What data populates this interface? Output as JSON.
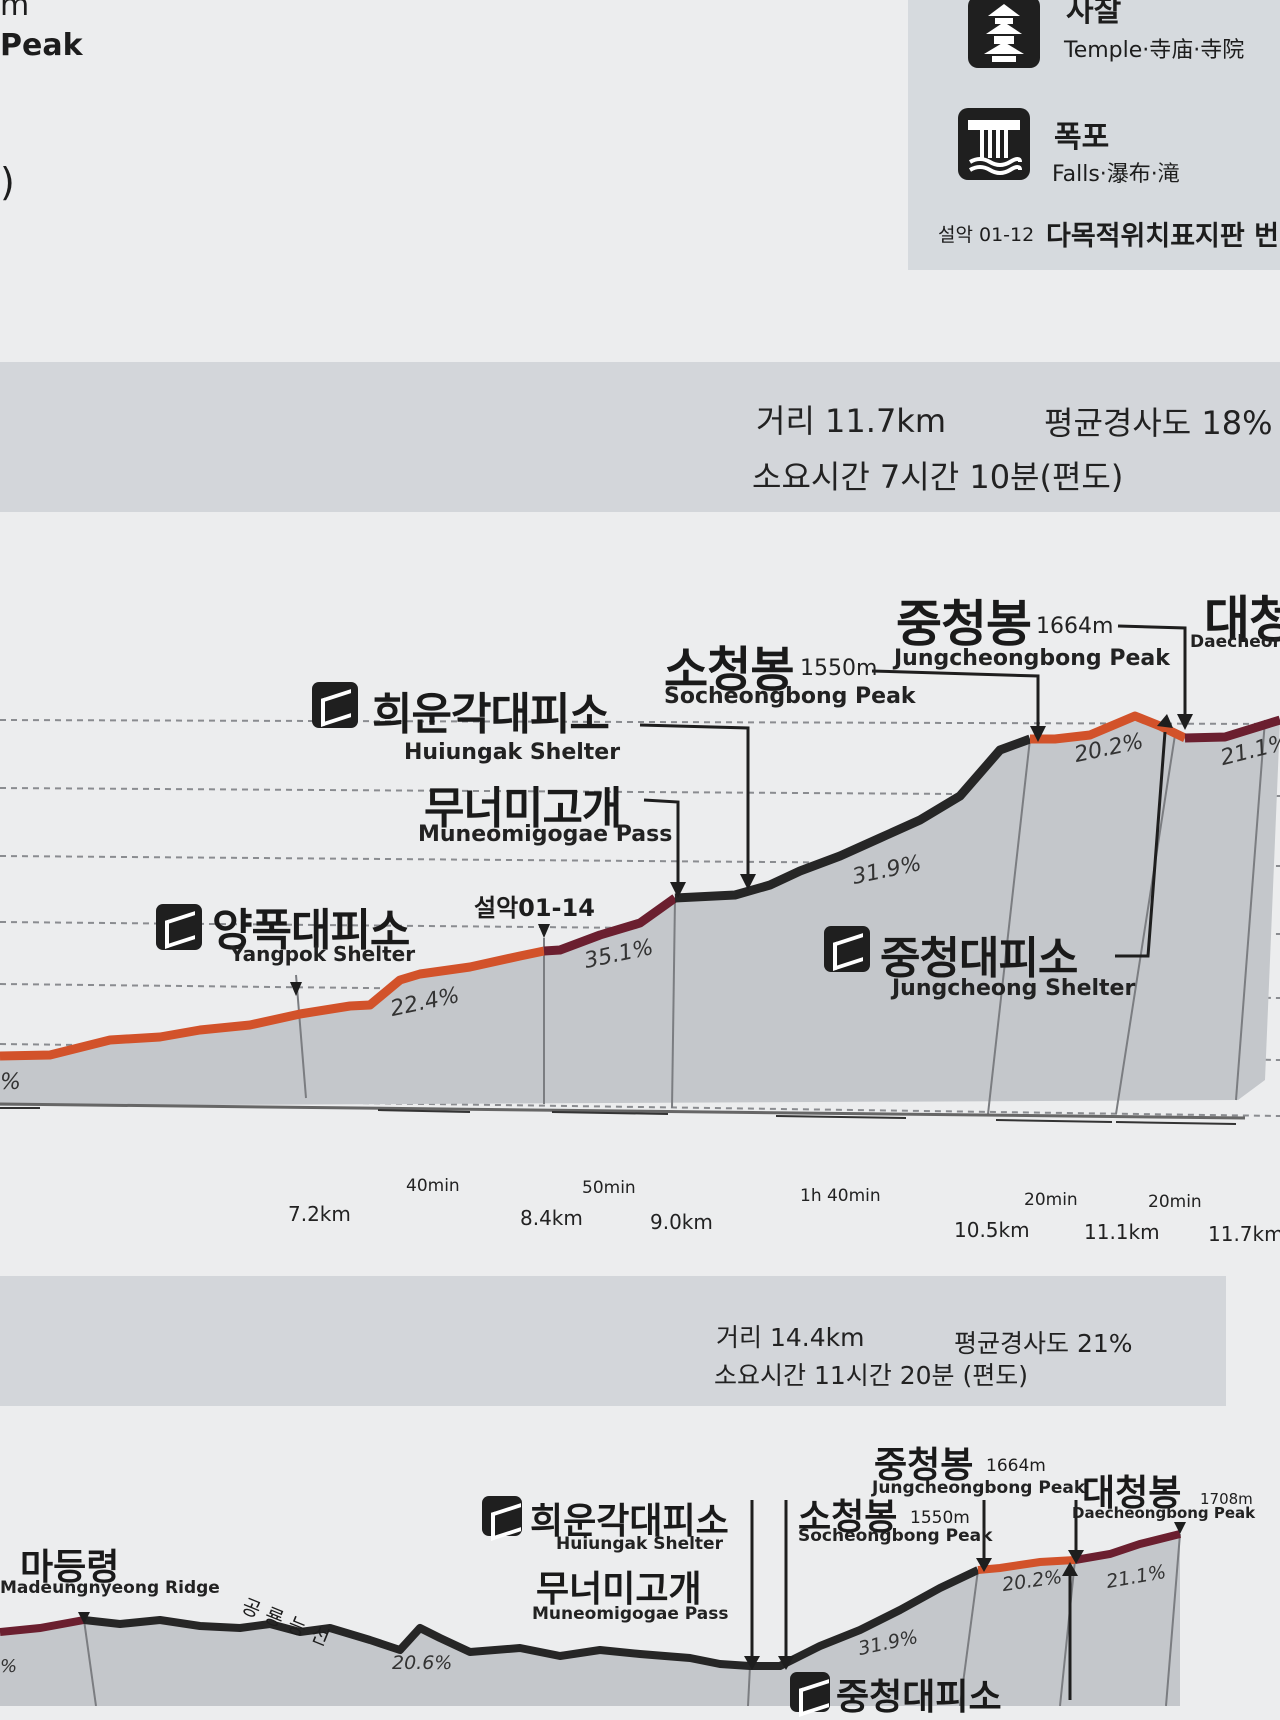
{
  "legend": {
    "temple": {
      "ko": "사찰",
      "en": "Temple·寺庙·寺院",
      "icon": "temple-icon"
    },
    "falls": {
      "ko": "폭포",
      "en": "Falls·瀑布·滝",
      "icon": "waterfall-icon"
    },
    "sign_code": "설악 01-12",
    "sign_title": "다목적위치표지판 번"
  },
  "top_left": {
    "line1": "m",
    "line2": "Peak",
    "line3": ")"
  },
  "route1": {
    "distance": "거리 11.7km",
    "grade": "평균경사도  18%",
    "time": "소요시간 7시간 10분(편도)",
    "points": {
      "daecheong_ko": "대청",
      "daecheong_en": "Daecheon",
      "jungcheongbong_ko": "중청봉",
      "jungcheongbong_elev": "1664m",
      "jungcheongbong_en": "Jungcheongbong Peak",
      "socheongbong_ko": "소청봉",
      "socheongbong_elev": "1550m",
      "socheongbong_en": "Socheongbong Peak",
      "huiungak_ko": "희운각대피소",
      "huiungak_en": "Huiungak Shelter",
      "muneomi_ko": "무너미고개",
      "muneomi_en": "Muneomigogae Pass",
      "seorak_code": "설악01-14",
      "yangpok_ko": "양폭대피소",
      "yangpok_en": "Yangpok Shelter",
      "jungcheong_shelter_ko": "중청대피소",
      "jungcheong_shelter_en": "Jungcheong Shelter"
    },
    "grades": [
      "22.4%",
      "35.1%",
      "31.9%",
      "20.2%",
      "21.1%",
      "%"
    ],
    "durations": [
      "40min",
      "50min",
      "1h 40min",
      "20min",
      "20min"
    ],
    "km_marks": [
      "7.2km",
      "8.4km",
      "9.0km",
      "10.5km",
      "11.1km",
      "11.7km"
    ],
    "colors": {
      "easy": "#d2522a",
      "mid": "#6b1f2f",
      "hard": "#262626"
    }
  },
  "route2": {
    "distance": "거리  14.4km",
    "grade": "평균경사도  21%",
    "time": "소요시간   11시간 20분 (편도)",
    "points": {
      "jungcheongbong_ko": "중청봉",
      "jungcheongbong_elev": "1664m",
      "jungcheongbong_en": "Jungcheongbong Peak",
      "daecheongbong_ko": "대청봉",
      "daecheongbong_elev": "1708m",
      "daecheongbong_en": "Daecheongbong Peak",
      "socheongbong_ko": "소청봉",
      "socheongbong_elev": "1550m",
      "socheongbong_en": "Socheongbong Peak",
      "huiungak_ko": "희운각대피소",
      "huiungak_en": "Huiungak Shelter",
      "muneomi_ko": "무너미고개",
      "muneomi_en": "Muneomigogae Pass",
      "madeung_ko": "마등령",
      "madeung_en": "Madeungnyeong Ridge",
      "ridge_name": "공 룡 능 선",
      "jungcheong_shelter_ko": "중청대피소"
    },
    "grades": [
      "20.6%",
      "31.9%",
      "20.2%",
      "21.1%",
      "%"
    ]
  }
}
